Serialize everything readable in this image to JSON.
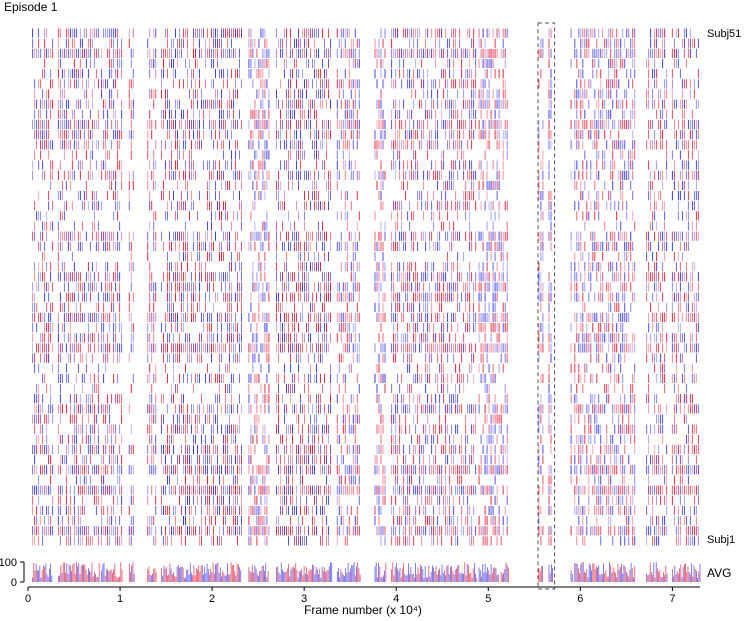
{
  "chart_data": {
    "type": "raster",
    "title": "Episode 1",
    "xlabel": "Frame number (x 10⁴)",
    "xlim": [
      0,
      7.3
    ],
    "x_ticks": [
      0,
      1,
      2,
      3,
      4,
      5,
      6,
      7
    ],
    "rows": {
      "top_label": "Subj51",
      "bottom_label": "Subj1",
      "count": 51
    },
    "avg_track": {
      "label": "AVG",
      "y_ticks": [
        0,
        100
      ],
      "ylim": [
        0,
        100
      ]
    },
    "highlight_window": {
      "x_start": 5.54,
      "x_end": 5.72,
      "style": "dashed"
    },
    "colors": {
      "positive": "#e8203a",
      "negative": "#3a3af0",
      "outline": "#555555"
    },
    "active_segments": [
      [
        0.05,
        0.27
      ],
      [
        0.33,
        0.78
      ],
      [
        0.8,
        1.03
      ],
      [
        1.1,
        1.16
      ],
      [
        1.3,
        1.4
      ],
      [
        1.45,
        2.32
      ],
      [
        2.4,
        2.62
      ],
      [
        2.7,
        3.3
      ],
      [
        3.36,
        3.62
      ],
      [
        3.77,
        3.9
      ],
      [
        3.95,
        4.88
      ],
      [
        4.9,
        5.12
      ],
      [
        5.14,
        5.22
      ],
      [
        5.55,
        5.6
      ],
      [
        5.66,
        5.7
      ],
      [
        5.9,
        5.92
      ],
      [
        5.94,
        6.2
      ],
      [
        6.2,
        6.6
      ],
      [
        6.72,
        6.95
      ],
      [
        7.0,
        7.3
      ]
    ]
  }
}
